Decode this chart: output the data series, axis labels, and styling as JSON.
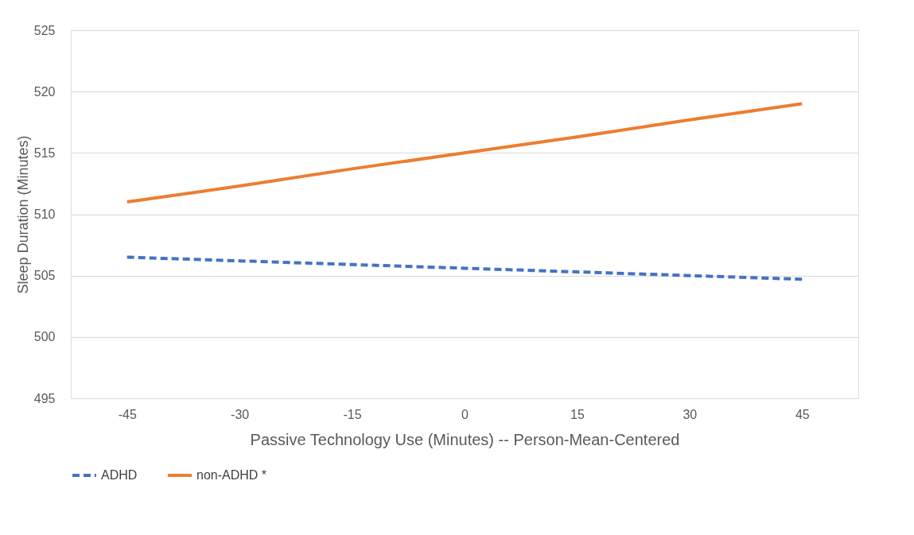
{
  "chart_data": {
    "type": "line",
    "xlabel": "Passive Technology Use (Minutes) -- Person-Mean-Centered",
    "ylabel": "Sleep Duration (Minutes)",
    "categories": [
      "-45",
      "-30",
      "-15",
      "0",
      "15",
      "30",
      "45"
    ],
    "series": [
      {
        "name": "ADHD",
        "color": "#4472c4",
        "line_style": "dashed",
        "values": [
          506.5,
          506.2,
          505.9,
          505.6,
          505.3,
          505.0,
          504.7
        ]
      },
      {
        "name": "non-ADHD *",
        "color": "#ed7d31",
        "line_style": "solid",
        "values": [
          511.0,
          512.3,
          513.7,
          515.0,
          516.3,
          517.7,
          519.0
        ]
      }
    ],
    "ylim": [
      495,
      525
    ],
    "yticks": [
      495,
      500,
      505,
      510,
      515,
      520,
      525
    ],
    "grid": "y",
    "legend": "bottom",
    "marker": "none"
  }
}
